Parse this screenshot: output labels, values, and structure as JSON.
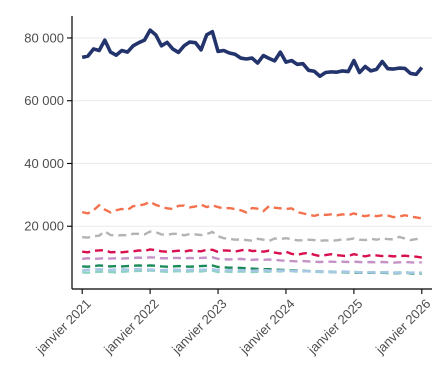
{
  "chart_data": {
    "type": "line",
    "title": "",
    "xlabel": "",
    "ylabel": "",
    "xlim": [
      2020.85,
      2026.15
    ],
    "ylim": [
      0,
      87000
    ],
    "grid": "horizontal-major",
    "legend": "none",
    "y_ticks": [
      {
        "value": 20000,
        "label": "20 000"
      },
      {
        "value": 40000,
        "label": "40 000"
      },
      {
        "value": 60000,
        "label": "60 000"
      },
      {
        "value": 80000,
        "label": "80 000"
      }
    ],
    "x_ticks": [
      {
        "value": 2021,
        "label": "janvier 2021"
      },
      {
        "value": 2022,
        "label": "janvier 2022"
      },
      {
        "value": 2023,
        "label": "janvier 2023"
      },
      {
        "value": 2024,
        "label": "janvier 2024"
      },
      {
        "value": 2025,
        "label": "janvier 2025"
      },
      {
        "value": 2026,
        "label": "janvier 2026"
      }
    ],
    "series": [
      {
        "color": "#22346b",
        "dash": "solid",
        "width": 3.6,
        "x": [
          2021.0,
          2021.083,
          2021.167,
          2021.25,
          2021.333,
          2021.417,
          2021.5,
          2021.583,
          2021.667,
          2021.75,
          2021.833,
          2021.917,
          2022.0,
          2022.083,
          2022.167,
          2022.25,
          2022.333,
          2022.417,
          2022.5,
          2022.583,
          2022.667,
          2022.75,
          2022.833,
          2022.917,
          2023.0,
          2023.083,
          2023.167,
          2023.25,
          2023.333,
          2023.417,
          2023.5,
          2023.583,
          2023.667,
          2023.75,
          2023.833,
          2023.917,
          2024.0,
          2024.083,
          2024.167,
          2024.25,
          2024.333,
          2024.417,
          2024.5,
          2024.583,
          2024.667,
          2024.75,
          2024.833,
          2024.917,
          2025.0,
          2025.083,
          2025.167,
          2025.25,
          2025.333,
          2025.417,
          2025.5,
          2025.583,
          2025.667,
          2025.75,
          2025.833,
          2025.917,
          2026.0
        ],
        "y": [
          73800,
          74200,
          76500,
          76000,
          79300,
          75500,
          74500,
          76000,
          75500,
          77500,
          78500,
          79300,
          82500,
          81000,
          77500,
          78600,
          76500,
          75400,
          77500,
          78700,
          78500,
          76200,
          81000,
          82000,
          75700,
          76000,
          75200,
          74800,
          73600,
          73300,
          73600,
          72000,
          74400,
          73500,
          72700,
          75500,
          72300,
          72800,
          71600,
          71800,
          69700,
          69400,
          67800,
          69000,
          69200,
          69100,
          69500,
          69300,
          72800,
          69000,
          70900,
          69500,
          70000,
          72500,
          70200,
          70100,
          70400,
          70300,
          68700,
          68400,
          70600
        ]
      },
      {
        "color": "#f4714e",
        "dash": "dashed",
        "width": 2.4,
        "x": [
          2021.0,
          2021.083,
          2021.167,
          2021.25,
          2021.333,
          2021.417,
          2021.5,
          2021.583,
          2021.667,
          2021.75,
          2021.833,
          2021.917,
          2022.0,
          2022.083,
          2022.167,
          2022.25,
          2022.333,
          2022.417,
          2022.5,
          2022.583,
          2022.667,
          2022.75,
          2022.833,
          2022.917,
          2023.0,
          2023.083,
          2023.167,
          2023.25,
          2023.333,
          2023.417,
          2023.5,
          2023.583,
          2023.667,
          2023.75,
          2023.833,
          2023.917,
          2024.0,
          2024.083,
          2024.167,
          2024.25,
          2024.333,
          2024.417,
          2024.5,
          2024.583,
          2024.667,
          2024.75,
          2024.833,
          2024.917,
          2025.0,
          2025.083,
          2025.167,
          2025.25,
          2025.333,
          2025.417,
          2025.5,
          2025.583,
          2025.667,
          2025.75,
          2025.833,
          2025.917,
          2026.0
        ],
        "y": [
          24500,
          24100,
          25100,
          26700,
          25300,
          24400,
          25100,
          25500,
          25200,
          26400,
          26600,
          27000,
          27800,
          26800,
          26200,
          25700,
          25500,
          26500,
          26600,
          26000,
          26300,
          26900,
          26100,
          26700,
          26100,
          25700,
          25800,
          25500,
          25100,
          24400,
          25800,
          25600,
          24800,
          26400,
          25900,
          25700,
          25500,
          25700,
          24500,
          24100,
          23700,
          23300,
          23800,
          23600,
          23800,
          23500,
          23800,
          23500,
          24100,
          23500,
          23200,
          23600,
          23200,
          23500,
          23400,
          22900,
          23100,
          23500,
          23100,
          22800,
          22500
        ]
      },
      {
        "color": "#b3b3b3",
        "dash": "dashed",
        "width": 2.4,
        "x": [
          2021.0,
          2021.083,
          2021.167,
          2021.25,
          2021.333,
          2021.417,
          2021.5,
          2021.583,
          2021.667,
          2021.75,
          2021.833,
          2021.917,
          2022.0,
          2022.083,
          2022.167,
          2022.25,
          2022.333,
          2022.417,
          2022.5,
          2022.583,
          2022.667,
          2022.75,
          2022.833,
          2022.917,
          2023.0,
          2023.083,
          2023.167,
          2023.25,
          2023.333,
          2023.417,
          2023.5,
          2023.583,
          2023.667,
          2023.75,
          2023.833,
          2023.917,
          2024.0,
          2024.083,
          2024.167,
          2024.25,
          2024.333,
          2024.417,
          2024.5,
          2024.583,
          2024.667,
          2024.75,
          2024.833,
          2024.917,
          2025.0,
          2025.083,
          2025.167,
          2025.25,
          2025.333,
          2025.417,
          2025.5,
          2025.583,
          2025.667,
          2025.75,
          2025.833,
          2025.917,
          2026.0
        ],
        "y": [
          16500,
          16400,
          16800,
          17000,
          18400,
          17200,
          17000,
          17200,
          17100,
          17600,
          17600,
          17400,
          18300,
          18100,
          17400,
          17300,
          17600,
          17600,
          17100,
          17500,
          17400,
          17200,
          17500,
          18200,
          16800,
          16200,
          16000,
          15700,
          15800,
          15600,
          15400,
          16000,
          15700,
          15300,
          16100,
          15900,
          16200,
          15900,
          15500,
          15500,
          15700,
          15600,
          15400,
          15500,
          15400,
          15500,
          15800,
          15800,
          16100,
          15700,
          15600,
          16000,
          15700,
          16100,
          15900,
          15800,
          16600,
          16100,
          15600,
          15900,
          16100
        ]
      },
      {
        "color": "#d8104e",
        "dash": "dashed",
        "width": 2.4,
        "x": [
          2021.0,
          2021.083,
          2021.167,
          2021.25,
          2021.333,
          2021.417,
          2021.5,
          2021.583,
          2021.667,
          2021.75,
          2021.833,
          2021.917,
          2022.0,
          2022.083,
          2022.167,
          2022.25,
          2022.333,
          2022.417,
          2022.5,
          2022.583,
          2022.667,
          2022.75,
          2022.833,
          2022.917,
          2023.0,
          2023.083,
          2023.167,
          2023.25,
          2023.333,
          2023.417,
          2023.5,
          2023.583,
          2023.667,
          2023.75,
          2023.833,
          2023.917,
          2024.0,
          2024.083,
          2024.167,
          2024.25,
          2024.333,
          2024.417,
          2024.5,
          2024.583,
          2024.667,
          2024.75,
          2024.833,
          2024.917,
          2025.0,
          2025.083,
          2025.167,
          2025.25,
          2025.333,
          2025.417,
          2025.5,
          2025.583,
          2025.667,
          2025.75,
          2025.833,
          2025.917,
          2026.0
        ],
        "y": [
          11900,
          11700,
          12200,
          12300,
          12400,
          11700,
          11800,
          11700,
          11900,
          12000,
          12300,
          12100,
          12600,
          12400,
          12000,
          11900,
          12000,
          12200,
          11900,
          12300,
          12100,
          12000,
          12500,
          12500,
          11800,
          12300,
          12200,
          11900,
          12300,
          12600,
          12100,
          12200,
          11900,
          12200,
          11600,
          11300,
          11900,
          11200,
          10900,
          11300,
          11500,
          10900,
          10500,
          10800,
          11100,
          10800,
          10600,
          10500,
          11100,
          10700,
          10400,
          10800,
          10700,
          10500,
          10600,
          10400,
          10500,
          10600,
          10400,
          10300,
          10000
        ]
      },
      {
        "color": "#c592c7",
        "dash": "dashed",
        "width": 2.4,
        "x": [
          2021.0,
          2021.083,
          2021.167,
          2021.25,
          2021.333,
          2021.417,
          2021.5,
          2021.583,
          2021.667,
          2021.75,
          2021.833,
          2021.917,
          2022.0,
          2022.083,
          2022.167,
          2022.25,
          2022.333,
          2022.417,
          2022.5,
          2022.583,
          2022.667,
          2022.75,
          2022.833,
          2022.917,
          2023.0,
          2023.083,
          2023.167,
          2023.25,
          2023.333,
          2023.417,
          2023.5,
          2023.583,
          2023.667,
          2023.75,
          2023.833,
          2023.917,
          2024.0,
          2024.083,
          2024.167,
          2024.25,
          2024.333,
          2024.417,
          2024.5,
          2024.583,
          2024.667,
          2024.75,
          2024.833,
          2024.917,
          2025.0,
          2025.083,
          2025.167,
          2025.25,
          2025.333,
          2025.417,
          2025.5,
          2025.583,
          2025.667,
          2025.75,
          2025.833,
          2025.917,
          2026.0
        ],
        "y": [
          9600,
          9800,
          9600,
          9700,
          9800,
          9700,
          9800,
          9700,
          9800,
          9900,
          10000,
          9900,
          10100,
          10000,
          9800,
          9800,
          9900,
          9900,
          9700,
          9900,
          9800,
          9900,
          10000,
          10100,
          9600,
          9500,
          9400,
          9500,
          9600,
          9400,
          9300,
          9400,
          9300,
          9400,
          9300,
          9100,
          9000,
          8900,
          8800,
          8900,
          8800,
          8700,
          8600,
          8700,
          8700,
          8600,
          8700,
          8600,
          8700,
          8600,
          8500,
          8600,
          8500,
          8600,
          8500,
          8400,
          8500,
          8600,
          8500,
          8400,
          8500
        ]
      },
      {
        "color": "#1a8a5a",
        "dash": "dashed",
        "width": 2.4,
        "x": [
          2021.0,
          2021.083,
          2021.167,
          2021.25,
          2021.333,
          2021.417,
          2021.5,
          2021.583,
          2021.667,
          2021.75,
          2021.833,
          2021.917,
          2022.0,
          2022.083,
          2022.167,
          2022.25,
          2022.333,
          2022.417,
          2022.5,
          2022.583,
          2022.667,
          2022.75,
          2022.833,
          2022.917,
          2023.0,
          2023.083,
          2023.167,
          2023.25,
          2023.333,
          2023.417,
          2023.5,
          2023.583,
          2023.667,
          2023.75,
          2023.833,
          2023.917,
          2024.0,
          2024.083,
          2024.167,
          2024.25,
          2024.333,
          2024.417,
          2024.5,
          2024.583,
          2024.667,
          2024.75,
          2024.833,
          2024.917,
          2025.0,
          2025.083,
          2025.167,
          2025.25,
          2025.333,
          2025.417,
          2025.5,
          2025.583,
          2025.667,
          2025.75,
          2025.833,
          2025.917,
          2026.0
        ],
        "y": [
          7200,
          7100,
          7300,
          7500,
          7400,
          7200,
          7300,
          7200,
          7300,
          7400,
          7500,
          7400,
          7500,
          7400,
          7200,
          7100,
          7200,
          7300,
          7200,
          7100,
          7200,
          7300,
          7400,
          7500,
          7000,
          6900,
          6800,
          6800,
          6700,
          6600,
          6500,
          6400,
          6300,
          6300,
          6200,
          6100,
          6000,
          5900,
          5900,
          5800,
          5700,
          5600,
          5600,
          5500,
          5400,
          5400,
          5300,
          5300,
          5200,
          5200,
          5100,
          5200,
          5100,
          5200,
          5100,
          5000,
          5100,
          5200,
          5000,
          4900,
          5000
        ]
      },
      {
        "color": "#8cd1c2",
        "dash": "dashed",
        "width": 2.4,
        "x": [
          2021.0,
          2021.083,
          2021.167,
          2021.25,
          2021.333,
          2021.417,
          2021.5,
          2021.583,
          2021.667,
          2021.75,
          2021.833,
          2021.917,
          2022.0,
          2022.083,
          2022.167,
          2022.25,
          2022.333,
          2022.417,
          2022.5,
          2022.583,
          2022.667,
          2022.75,
          2022.833,
          2022.917,
          2023.0,
          2023.083,
          2023.167,
          2023.25,
          2023.333,
          2023.417,
          2023.5,
          2023.583,
          2023.667,
          2023.75,
          2023.833,
          2023.917,
          2024.0,
          2024.083,
          2024.167,
          2024.25,
          2024.333,
          2024.417,
          2024.5,
          2024.583,
          2024.667,
          2024.75,
          2024.833,
          2024.917,
          2025.0,
          2025.083,
          2025.167,
          2025.25,
          2025.333,
          2025.417,
          2025.5,
          2025.583,
          2025.667,
          2025.75,
          2025.833,
          2025.917,
          2026.0
        ],
        "y": [
          5300,
          5200,
          5400,
          5500,
          5600,
          5400,
          5300,
          5500,
          5600,
          5700,
          5800,
          5700,
          5900,
          5800,
          5600,
          5500,
          5600,
          5700,
          5500,
          5600,
          5700,
          5600,
          5800,
          5900,
          5400,
          5600,
          5500,
          5400,
          5600,
          5500,
          5400,
          5500,
          5600,
          5500,
          5700,
          5600,
          5800,
          5700,
          5500,
          5600,
          5700,
          5500,
          5400,
          5500,
          5600,
          5400,
          5300,
          5400,
          5500,
          5300,
          5200,
          5300,
          5400,
          5300,
          5200,
          5100,
          5300,
          5400,
          5200,
          5100,
          5200
        ]
      },
      {
        "color": "#a9c7e6",
        "dash": "dashed",
        "width": 2.4,
        "x": [
          2021.0,
          2021.083,
          2021.167,
          2021.25,
          2021.333,
          2021.417,
          2021.5,
          2021.583,
          2021.667,
          2021.75,
          2021.833,
          2021.917,
          2022.0,
          2022.083,
          2022.167,
          2022.25,
          2022.333,
          2022.417,
          2022.5,
          2022.583,
          2022.667,
          2022.75,
          2022.833,
          2022.917,
          2023.0,
          2023.083,
          2023.167,
          2023.25,
          2023.333,
          2023.417,
          2023.5,
          2023.583,
          2023.667,
          2023.75,
          2023.833,
          2023.917,
          2024.0,
          2024.083,
          2024.167,
          2024.25,
          2024.333,
          2024.417,
          2024.5,
          2024.583,
          2024.667,
          2024.75,
          2024.833,
          2024.917,
          2025.0,
          2025.083,
          2025.167,
          2025.25,
          2025.333,
          2025.417,
          2025.5,
          2025.583,
          2025.667,
          2025.75,
          2025.833,
          2025.917,
          2026.0
        ],
        "y": [
          6000,
          6100,
          6200,
          6300,
          6200,
          6100,
          6200,
          6300,
          6200,
          6300,
          6400,
          6300,
          6200,
          6100,
          6000,
          6100,
          6200,
          6100,
          6000,
          6100,
          6200,
          6100,
          6200,
          6300,
          6000,
          5900,
          6000,
          6100,
          6000,
          5900,
          5800,
          5900,
          6000,
          5900,
          5800,
          5900,
          5800,
          5700,
          5800,
          5700,
          5600,
          5500,
          5600,
          5500,
          5400,
          5500,
          5600,
          5500,
          5400,
          5300,
          5400,
          5300,
          5200,
          5300,
          5400,
          5300,
          5200,
          5100,
          5200,
          5300,
          5200
        ]
      }
    ]
  }
}
